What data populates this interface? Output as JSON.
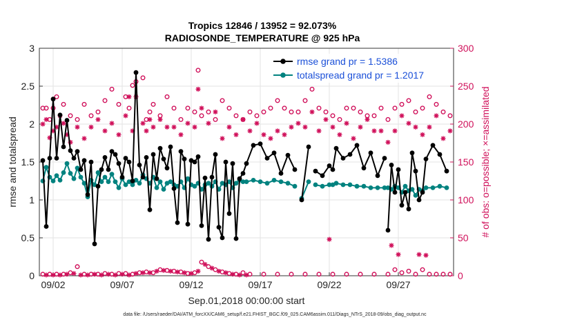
{
  "chart_data": {
    "type": "line",
    "title": "Tropics 12846 / 13952 = 92.073%",
    "subtitle": "RADIOSONDE_TEMPERATURE @ 925 hPa",
    "xlabel": "Sep.01,2018 00:00:00 start",
    "ylabel": "rmse and totalspread",
    "ylabel_right": "# of obs: o=possible; ×=assimilated",
    "footnote": "data file: /Users/raeder/DAI/ATM_forcXX/CAM6_setup/f.e21.FHIST_BGC.f09_025.CAM6assim.011/Diags_NTrS_2018-09/obs_diag_output.nc",
    "xlim": [
      1,
      31
    ],
    "ylim": [
      0,
      3
    ],
    "ylim_right": [
      0,
      300
    ],
    "x_ticks": [
      2,
      7,
      12,
      17,
      22,
      27
    ],
    "x_tick_labels": [
      "09/02",
      "09/07",
      "09/12",
      "09/17",
      "09/22",
      "09/27"
    ],
    "y_ticks": [
      0,
      0.5,
      1,
      1.5,
      2,
      2.5,
      3
    ],
    "y_tick_labels": [
      "0",
      "0.5",
      "1",
      "1.5",
      "2",
      "2.5",
      "3"
    ],
    "y_right_ticks": [
      0,
      50,
      100,
      150,
      200,
      250,
      300
    ],
    "y_right_tick_labels": [
      "0",
      "50",
      "100",
      "150",
      "200",
      "250",
      "300"
    ],
    "grid": true,
    "legend_position": "top-right",
    "colors": {
      "rmse": "#000000",
      "spread": "#00827f",
      "obs": "#d0105a",
      "legend_text": "#1a4fd8"
    },
    "series": [
      {
        "name": "rmse grand pr = 1.5386",
        "axis": "left",
        "x": [
          1.25,
          1.5,
          1.75,
          2,
          2.25,
          2.5,
          2.75,
          3,
          3.25,
          3.5,
          3.75,
          4,
          4.25,
          4.5,
          4.75,
          5,
          5.25,
          5.5,
          5.75,
          6,
          6.25,
          6.5,
          6.75,
          7,
          7.25,
          7.5,
          7.75,
          8,
          8.25,
          8.5,
          8.75,
          9,
          9.25,
          9.5,
          9.75,
          10,
          10.25,
          10.5,
          10.75,
          11,
          11.25,
          11.5,
          11.75,
          12,
          12.25,
          12.5,
          12.75,
          13,
          13.25,
          13.5,
          13.75,
          14,
          14.25,
          14.5,
          14.75,
          15,
          15.25,
          15.5,
          15.75,
          16,
          16.5,
          17,
          17.5,
          18,
          18.5,
          19,
          19.5,
          20,
          20.5,
          21,
          21.5,
          22,
          22.25,
          22.5,
          23,
          23.5,
          24,
          24.5,
          25,
          25.5,
          26,
          26.25,
          26.5,
          26.75,
          27,
          27.25,
          27.5,
          27.75,
          28,
          28.25,
          28.5,
          28.75,
          29,
          29.5,
          30,
          30.5
        ],
        "values": [
          1.52,
          0.65,
          1.55,
          2.33,
          1.55,
          2.12,
          1.7,
          2.05,
          1.65,
          1.55,
          1.64,
          1.4,
          1.52,
          1.07,
          1.5,
          0.42,
          1.18,
          1.4,
          1.56,
          1.4,
          1.64,
          1.6,
          1.48,
          1.3,
          1.55,
          1.5,
          1.25,
          2.68,
          1.46,
          1.3,
          1.56,
          0.87,
          1.6,
          1.28,
          1.68,
          1.54,
          1.42,
          1.7,
          1.15,
          0.7,
          1.64,
          1.54,
          0.68,
          1.52,
          1.5,
          1.57,
          0.66,
          1.29,
          0.48,
          1.3,
          1.6,
          0.64,
          0.5,
          1.5,
          0.82,
          1.48,
          0.49,
          1.28,
          1.35,
          1.48,
          1.72,
          1.74,
          1.55,
          1.62,
          1.35,
          1.59,
          1.4,
          1.0,
          1.7,
          1.38,
          1.32,
          1.45,
          1.4,
          1.68,
          1.55,
          1.6,
          1.72,
          1.42,
          1.62,
          1.32,
          1.55,
          0.6,
          1.46,
          1.1,
          1.4,
          0.93,
          1.1,
          0.88,
          1.62,
          1.38,
          1.0,
          1.1,
          1.54,
          1.72,
          1.6,
          1.38
        ],
        "gaps_after_index": [
          66,
          68,
          80
        ]
      },
      {
        "name": "totalspread grand pr = 1.2017",
        "axis": "left",
        "x": [
          1.25,
          1.5,
          1.75,
          2,
          2.25,
          2.5,
          2.75,
          3,
          3.25,
          3.5,
          3.75,
          4,
          4.25,
          4.5,
          4.75,
          5,
          5.25,
          5.5,
          5.75,
          6,
          6.25,
          6.5,
          6.75,
          7,
          7.25,
          7.5,
          7.75,
          8,
          8.25,
          8.5,
          8.75,
          9,
          9.25,
          9.5,
          9.75,
          10,
          10.25,
          10.5,
          10.75,
          11,
          11.25,
          11.5,
          11.75,
          12,
          12.25,
          12.5,
          12.75,
          13,
          13.25,
          13.5,
          13.75,
          14,
          14.25,
          14.5,
          14.75,
          15,
          15.25,
          15.5,
          15.75,
          16,
          16.5,
          17,
          17.5,
          18,
          18.5,
          19,
          19.5,
          20,
          20.5,
          21,
          21.5,
          22,
          22.25,
          22.5,
          23,
          23.5,
          24,
          24.5,
          25,
          25.5,
          26,
          26.25,
          26.5,
          26.75,
          27,
          27.25,
          27.5,
          27.75,
          28,
          28.25,
          28.5,
          28.75,
          29,
          29.5,
          30,
          30.5
        ],
        "values": [
          1.25,
          1.43,
          1.3,
          1.25,
          1.32,
          1.26,
          1.36,
          1.48,
          1.35,
          1.28,
          1.42,
          1.3,
          1.22,
          1.04,
          1.26,
          1.2,
          1.36,
          1.24,
          1.3,
          1.24,
          1.34,
          1.24,
          1.16,
          1.28,
          1.2,
          1.24,
          1.2,
          1.26,
          1.22,
          1.33,
          1.28,
          1.22,
          1.3,
          1.16,
          1.24,
          1.14,
          1.22,
          1.24,
          1.2,
          1.18,
          1.24,
          1.16,
          1.28,
          1.2,
          1.18,
          1.22,
          1.14,
          1.2,
          1.22,
          1.18,
          1.24,
          1.14,
          1.22,
          1.2,
          1.24,
          1.16,
          1.22,
          1.26,
          1.24,
          1.24,
          1.26,
          1.24,
          1.22,
          1.26,
          1.24,
          1.22,
          1.18,
          1.02,
          1.24,
          1.2,
          1.18,
          1.2,
          1.2,
          1.22,
          1.2,
          1.2,
          1.18,
          1.18,
          1.16,
          1.16,
          1.16,
          1.16,
          1.14,
          1.18,
          1.16,
          1.1,
          1.18,
          1.12,
          1.14,
          1.06,
          1.14,
          1.12,
          1.16,
          1.16,
          1.18,
          1.16
        ],
        "gaps_after_index": [
          66,
          68,
          80
        ]
      },
      {
        "name": "obs possible",
        "axis": "right",
        "marker": "o",
        "x": [
          1.25,
          1.5,
          1.75,
          2,
          2.25,
          2.75,
          3.25,
          3.75,
          4.25,
          4.75,
          5.25,
          5.75,
          6.25,
          6.75,
          7.25,
          7.5,
          7.75,
          8,
          8.5,
          8.75,
          9,
          9.25,
          9.75,
          10.25,
          10.75,
          11.25,
          11.75,
          12.25,
          12.5,
          12.75,
          13.25,
          13.75,
          14.25,
          14.75,
          15.25,
          15.75,
          16.25,
          16.75,
          17.25,
          17.75,
          18.25,
          18.75,
          19.25,
          19.75,
          20.25,
          20.75,
          21.25,
          21.75,
          22.25,
          22.75,
          23.25,
          23.75,
          24.25,
          24.75,
          25.25,
          25.75,
          26.25,
          26.75,
          27.25,
          27.75,
          28.25,
          28.75,
          29.25,
          29.75,
          30.25,
          30.75
        ],
        "values": [
          221,
          221,
          206,
          221,
          236,
          226,
          211,
          206,
          226,
          211,
          216,
          231,
          246,
          226,
          236,
          221,
          251,
          256,
          261,
          206,
          216,
          226,
          211,
          236,
          221,
          206,
          221,
          216,
          271,
          211,
          216,
          206,
          231,
          221,
          211,
          206,
          216,
          211,
          216,
          221,
          231,
          221,
          216,
          216,
          231,
          246,
          221,
          216,
          211,
          206,
          221,
          221,
          216,
          211,
          211,
          221,
          206,
          221,
          226,
          231,
          216,
          221,
          236,
          226,
          216,
          211
        ]
      },
      {
        "name": "obs assimilated",
        "axis": "right",
        "marker": "*",
        "x": [
          1.25,
          1.5,
          1.75,
          2,
          2.25,
          2.5,
          2.75,
          3,
          3.25,
          3.75,
          4.25,
          4.75,
          5.25,
          5.75,
          6.25,
          6.75,
          7.25,
          7.5,
          7.75,
          8,
          8.5,
          8.75,
          9,
          9.25,
          9.75,
          10.25,
          10.75,
          11.25,
          11.75,
          12.25,
          12.5,
          12.75,
          13.25,
          13.75,
          14.25,
          14.75,
          15.25,
          15.75,
          16.25,
          16.75,
          17.25,
          17.75,
          18.25,
          18.75,
          19.25,
          19.75,
          20.25,
          20.75,
          21.25,
          21.75,
          22.25,
          22.75,
          23.25,
          23.75,
          24.25,
          24.75,
          25.25,
          25.75,
          26.25,
          26.75,
          27.25,
          27.75,
          28.25,
          28.75,
          29.25,
          29.75,
          30.25,
          30.75
        ],
        "values": [
          200,
          206,
          182,
          191,
          196,
          211,
          201,
          186,
          176,
          196,
          181,
          196,
          206,
          191,
          201,
          186,
          211,
          236,
          191,
          236,
          201,
          191,
          206,
          196,
          206,
          196,
          196,
          186,
          201,
          196,
          246,
          221,
          201,
          216,
          181,
          196,
          186,
          206,
          191,
          201,
          186,
          181,
          191,
          186,
          196,
          201,
          196,
          216,
          191,
          206,
          196,
          186,
          201,
          181,
          196,
          206,
          191,
          191,
          176,
          191,
          211,
          201,
          196,
          186,
          196,
          211,
          181,
          191
        ]
      },
      {
        "name": "obs near zero possible",
        "axis": "right",
        "marker": "o",
        "x": [
          1.25,
          1.75,
          2.25,
          2.75,
          3.25,
          3.75,
          4.25,
          4.75,
          5.25,
          5.75,
          6.25,
          6.75,
          7.25,
          7.75,
          8.25,
          8.75,
          9.25,
          9.75,
          10.25,
          10.75,
          11.25,
          11.75,
          12.25,
          12.75,
          13.25,
          13.75,
          14.25,
          14.75,
          15.25,
          15.75,
          16.25,
          17.25,
          18.25,
          19.25,
          20.25,
          21.25,
          22.25,
          23.25,
          24.25,
          25.25,
          26.25,
          26.75,
          27.25,
          27.75,
          28.25,
          28.75,
          29.25,
          29.75,
          30.25,
          30.75
        ],
        "values": [
          2,
          2,
          2,
          2,
          4,
          12,
          2,
          2,
          2,
          3,
          2,
          3,
          3,
          2,
          4,
          5,
          4,
          8,
          7,
          6,
          5,
          3,
          4,
          18,
          12,
          8,
          5,
          3,
          2,
          4,
          2,
          2,
          2,
          2,
          2,
          2,
          2,
          2,
          2,
          2,
          2,
          8,
          4,
          6,
          2,
          8,
          2,
          2,
          2,
          2
        ]
      },
      {
        "name": "obs near zero assimilated",
        "axis": "right",
        "marker": "*",
        "x": [
          1.5,
          2,
          2.5,
          3,
          3.5,
          4,
          4.5,
          5,
          5.5,
          6,
          6.5,
          7,
          7.5,
          8,
          8.5,
          9,
          9.5,
          10,
          10.5,
          11,
          11.5,
          12,
          12.5,
          13,
          13.5,
          14,
          14.5,
          15,
          15.5,
          16,
          22,
          26.5,
          27,
          28.5,
          29
        ],
        "values": [
          1,
          1,
          1,
          2,
          3,
          1,
          1,
          2,
          1,
          2,
          1,
          2,
          1,
          3,
          4,
          4,
          6,
          7,
          6,
          5,
          4,
          3,
          6,
          15,
          10,
          6,
          4,
          2,
          1,
          1,
          48,
          40,
          28,
          28,
          27
        ]
      }
    ]
  }
}
